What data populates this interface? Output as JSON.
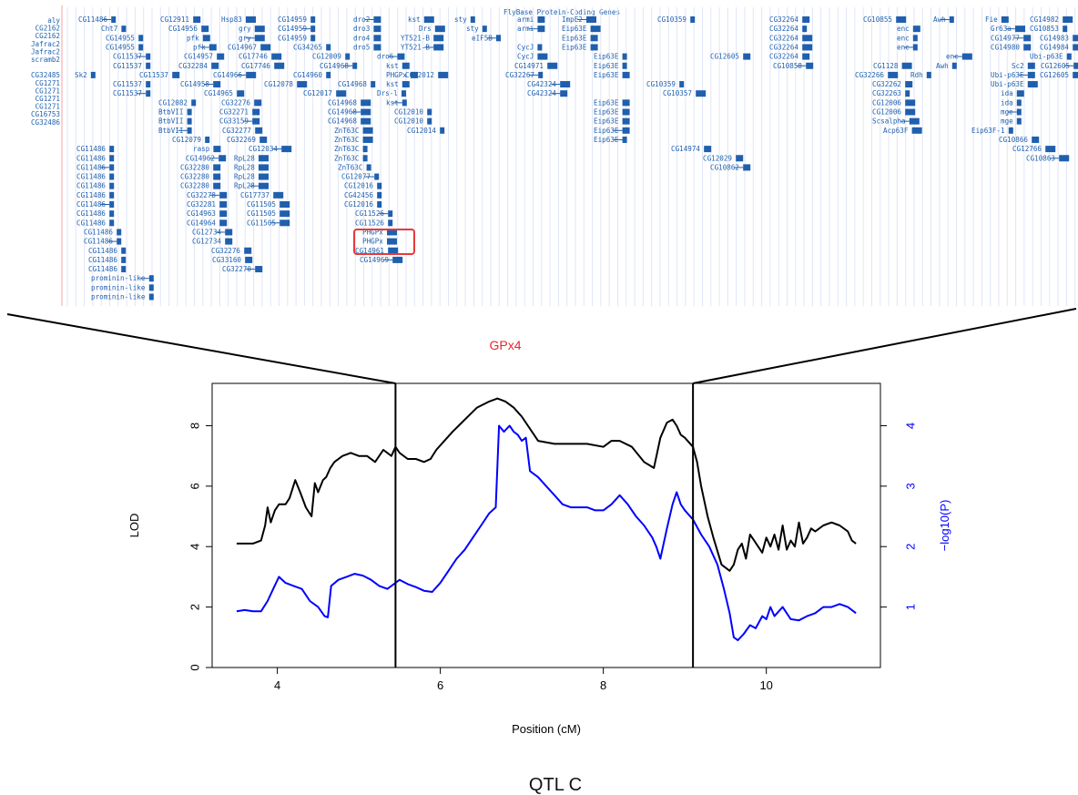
{
  "browser": {
    "track_title": "FlyBase Protein-Coding Genes",
    "left_labels": [
      "aly",
      "CG2162",
      "CG2162",
      "Jafrac2",
      "Jafrac2",
      "scramb2",
      "",
      "CG32485",
      "CG1271",
      "CG1271",
      "CG1271",
      "CG1271",
      "CG16753",
      "CG32486"
    ],
    "gene_rows": [
      [
        [
          "CG11486",
          -1
        ],
        [
          "CG12911",
          -1
        ],
        [
          "Hsp83",
          -1
        ],
        [
          "CG14959",
          -1
        ],
        [
          "dro2",
          -1
        ],
        [
          "kst",
          -1
        ],
        [
          "sty",
          -1
        ],
        [
          "armi",
          -1
        ],
        [
          "ImpE2",
          -1
        ],
        [
          "CG10359",
          -1
        ],
        [
          "CG32264",
          -1
        ],
        [
          "CG10855",
          -1
        ],
        [
          "Awh",
          -1
        ],
        [
          "Fie",
          -1
        ],
        [
          "CG14982",
          -1
        ]
      ],
      [
        [
          "Cht7",
          -1
        ],
        [
          "CG14956",
          -1
        ],
        [
          "gry",
          -1
        ],
        [
          "CG14959",
          -1
        ],
        [
          "dro3",
          -1
        ],
        [
          "Drs",
          -1
        ],
        [
          "sty",
          -1
        ],
        [
          "armi",
          -1
        ],
        [
          "Eip63E",
          -1
        ],
        [
          "CG32264",
          -1
        ],
        [
          "enc",
          -1
        ],
        [
          "Gr63a",
          -1
        ],
        [
          "CG10853",
          -1
        ]
      ],
      [
        [
          "CG14955",
          -1
        ],
        [
          "pfk",
          -1
        ],
        [
          "gry",
          -1
        ],
        [
          "CG14959",
          -1
        ],
        [
          "dro4",
          -1
        ],
        [
          "YT521-B",
          -1
        ],
        [
          "eIF5B",
          -1
        ],
        [
          "Eip63E",
          -1
        ],
        [
          "CG32264",
          -1
        ],
        [
          "enc",
          -1
        ],
        [
          "CG14977",
          -1
        ],
        [
          "CG14983",
          -1
        ]
      ],
      [
        [
          "CG14955",
          -1
        ],
        [
          "pfk",
          -1
        ],
        [
          "CG14967",
          -1
        ],
        [
          "CG34265",
          -1
        ],
        [
          "dro5",
          -1
        ],
        [
          "YT521-B",
          -1
        ],
        [
          "CycJ",
          -1
        ],
        [
          "Eip63E",
          -1
        ],
        [
          "CG32264",
          -1
        ],
        [
          "enc",
          -1
        ],
        [
          "CG14980",
          -1
        ],
        [
          "CG14984",
          -1
        ]
      ],
      [
        [
          "CG11537",
          -1
        ],
        [
          "CG14957",
          -1
        ],
        [
          "CG17746",
          -1
        ],
        [
          "CG12009",
          -1
        ],
        [
          "dro6",
          -1
        ],
        [
          "CycJ",
          -1
        ],
        [
          "Eip63E",
          -1
        ],
        [
          "CG32264",
          -1
        ],
        [
          "enc",
          -1
        ],
        [
          "Ubi-p63E",
          -1
        ],
        [
          "CG12605",
          -1
        ]
      ],
      [
        [
          "CG11537",
          -1
        ],
        [
          "CG32284",
          -1
        ],
        [
          "CG17746",
          -1
        ],
        [
          "CG14968",
          -1
        ],
        [
          "kst",
          -1
        ],
        [
          "CG14971",
          -1
        ],
        [
          "Eip63E",
          -1
        ],
        [
          "CG10858",
          -1
        ],
        [
          "CG1128",
          -1
        ],
        [
          "Awh",
          -1
        ],
        [
          "Sc2",
          -1
        ],
        [
          "CG12605",
          -1
        ]
      ],
      [
        [
          "Sk2",
          -1
        ],
        [
          "CG11537",
          -1
        ],
        [
          "CG14966",
          -1
        ],
        [
          "CG14960",
          -1
        ],
        [
          "PHGPx",
          -1
        ],
        [
          "CG12012",
          -1
        ],
        [
          "CG32267",
          -1
        ],
        [
          "Eip63E",
          -1
        ],
        [
          "CG32266",
          -1
        ],
        [
          "Rdh",
          -1
        ],
        [
          "Ubi-p63E",
          -1
        ],
        [
          "CG12605",
          -1
        ]
      ],
      [
        [
          "CG11537",
          -1
        ],
        [
          "CG14958",
          -1
        ],
        [
          "CG12078",
          -1
        ],
        [
          "CG14968",
          -1
        ],
        [
          "kst",
          -1
        ],
        [
          "CG42324",
          -1
        ],
        [
          "CG10359",
          -1
        ],
        [
          "CG32262",
          -1
        ],
        [
          "Ubi-p63E",
          -1
        ]
      ],
      [
        [
          "CG11537",
          -1
        ],
        [
          "CG14965",
          -1
        ],
        [
          "CG12017",
          -1
        ],
        [
          "Drs-l",
          -1
        ],
        [
          "CG42324",
          -1
        ],
        [
          "CG10357",
          -1
        ],
        [
          "CG32263",
          -1
        ],
        [
          "ida",
          -1
        ]
      ],
      [
        [
          "CG12082",
          -1
        ],
        [
          "CG32276",
          -1
        ],
        [
          "CG14968",
          -1
        ],
        [
          "kst",
          -1
        ],
        [
          "Eip63E",
          -1
        ],
        [
          "CG12006",
          -1
        ],
        [
          "ida",
          -1
        ]
      ],
      [
        [
          "BtbVII",
          -1
        ],
        [
          "CG32271",
          -1
        ],
        [
          "CG14968",
          -1
        ],
        [
          "CG12010",
          -1
        ],
        [
          "Eip63E",
          -1
        ],
        [
          "CG12006",
          -1
        ],
        [
          "mge",
          -1
        ]
      ],
      [
        [
          "BtbVII",
          -1
        ],
        [
          "CG33159",
          -1
        ],
        [
          "CG14968",
          -1
        ],
        [
          "CG12010",
          -1
        ],
        [
          "Eip63E",
          -1
        ],
        [
          "Scsalpha",
          -1
        ],
        [
          "mge",
          -1
        ]
      ],
      [
        [
          "BtbVII",
          -1
        ],
        [
          "CG32277",
          -1
        ],
        [
          "ZnT63C",
          -1
        ],
        [
          "CG12014",
          -1
        ],
        [
          "Eip63E",
          -1
        ],
        [
          "Acp63F",
          -1
        ],
        [
          "Eip63F-1",
          -1
        ]
      ],
      [
        [
          "CG12079",
          -1
        ],
        [
          "CG32269",
          -1
        ],
        [
          "ZnT63C",
          -1
        ],
        [
          "Eip63E",
          -1
        ],
        [
          "CG10866",
          -1
        ]
      ],
      [
        [
          "CG11486",
          -1
        ],
        [
          "rasp",
          -1
        ],
        [
          "CG12034",
          -1
        ],
        [
          "ZnT63C",
          -1
        ],
        [
          "CG14974",
          -1
        ],
        [
          "CG12766",
          -1
        ]
      ],
      [
        [
          "CG11486",
          -1
        ],
        [
          "CG14962",
          -1
        ],
        [
          "RpL28",
          -1
        ],
        [
          "ZnT63C",
          -1
        ],
        [
          "CG12029",
          -1
        ],
        [
          "CG10863",
          -1
        ]
      ],
      [
        [
          "CG11486",
          -1
        ],
        [
          "CG32280",
          -1
        ],
        [
          "RpL28",
          -1
        ],
        [
          "ZnT63C",
          -1
        ],
        [
          "CG10862",
          -1
        ]
      ],
      [
        [
          "CG11486",
          -1
        ],
        [
          "CG32280",
          -1
        ],
        [
          "RpL28",
          -1
        ],
        [
          "CG12077",
          -1
        ]
      ],
      [
        [
          "CG11486",
          -1
        ],
        [
          "CG32280",
          -1
        ],
        [
          "RpL28",
          -1
        ],
        [
          "CG12016",
          -1
        ]
      ],
      [
        [
          "CG11486",
          -1
        ],
        [
          "CG32278",
          -1
        ],
        [
          "CG17737",
          -1
        ],
        [
          "CG42456",
          -1
        ]
      ],
      [
        [
          "CG11486",
          -1
        ],
        [
          "CG32281",
          -1
        ],
        [
          "CG11505",
          -1
        ],
        [
          "CG12016",
          -1
        ]
      ],
      [
        [
          "CG11486",
          -1
        ],
        [
          "CG14963",
          -1
        ],
        [
          "CG11505",
          -1
        ],
        [
          "CG11526",
          -1
        ]
      ],
      [
        [
          "CG11486",
          -1
        ],
        [
          "CG14964",
          -1
        ],
        [
          "CG11505",
          -1
        ],
        [
          "CG11526",
          -1
        ]
      ],
      [
        [
          "CG11486",
          -1
        ],
        [
          "CG12734",
          -1
        ],
        [
          "PHGPx",
          -1
        ]
      ],
      [
        [
          "CG11486",
          -1
        ],
        [
          "CG12734",
          -1
        ],
        [
          "PHGPx",
          -1
        ]
      ],
      [
        [
          "CG11486",
          -1
        ],
        [
          "CG32276",
          -1
        ],
        [
          "CG14961",
          -1
        ]
      ],
      [
        [
          "CG11486",
          -1
        ],
        [
          "CG33160",
          -1
        ],
        [
          "CG14969",
          -1
        ]
      ],
      [
        [
          "CG11486",
          -1
        ],
        [
          "CG32270",
          -1
        ]
      ],
      [
        [
          "prominin-like",
          -1
        ]
      ],
      [
        [
          "prominin-like",
          -1
        ]
      ],
      [
        [
          "prominin-like",
          -1
        ]
      ]
    ]
  },
  "highlight_label": "GPx4",
  "caption": "QTL C",
  "chart_data": {
    "type": "line",
    "xlabel": "Position (cM)",
    "ylabel": "LOD",
    "y2label": "−log10(P)",
    "xlim": [
      3.2,
      11.4
    ],
    "ylim": [
      0,
      9.4
    ],
    "y2lim": [
      0,
      4.7
    ],
    "xticks": [
      4,
      6,
      8,
      10
    ],
    "yticks": [
      0,
      2,
      4,
      6,
      8
    ],
    "y2ticks": [
      1,
      2,
      3,
      4
    ],
    "vlines": [
      5.45,
      9.1
    ],
    "series": [
      {
        "axis": "left",
        "color": "#000000",
        "x": [
          3.5,
          3.6,
          3.7,
          3.8,
          3.85,
          3.88,
          3.92,
          3.97,
          4.02,
          4.1,
          4.15,
          4.22,
          4.28,
          4.35,
          4.42,
          4.46,
          4.5,
          4.56,
          4.6,
          4.65,
          4.7,
          4.8,
          4.9,
          5.0,
          5.1,
          5.2,
          5.3,
          5.4,
          5.45,
          5.5,
          5.6,
          5.7,
          5.8,
          5.88,
          5.95,
          6.05,
          6.15,
          6.3,
          6.45,
          6.6,
          6.7,
          6.8,
          6.9,
          7.0,
          7.2,
          7.4,
          7.6,
          7.8,
          8.0,
          8.1,
          8.2,
          8.35,
          8.5,
          8.62,
          8.7,
          8.78,
          8.85,
          8.9,
          8.95,
          9.0,
          9.1,
          9.15,
          9.2,
          9.28,
          9.35,
          9.45,
          9.55,
          9.6,
          9.65,
          9.7,
          9.75,
          9.8,
          9.85,
          9.9,
          9.95,
          10.0,
          10.05,
          10.1,
          10.15,
          10.2,
          10.25,
          10.3,
          10.35,
          10.4,
          10.45,
          10.5,
          10.55,
          10.6,
          10.7,
          10.8,
          10.9,
          11.0,
          11.05,
          11.1
        ],
        "y": [
          4.1,
          4.1,
          4.1,
          4.2,
          4.7,
          5.3,
          4.8,
          5.2,
          5.4,
          5.4,
          5.6,
          6.2,
          5.8,
          5.3,
          5.0,
          6.1,
          5.8,
          6.2,
          6.3,
          6.6,
          6.8,
          7.0,
          7.1,
          7.0,
          7.0,
          6.8,
          7.2,
          7.0,
          7.3,
          7.1,
          6.9,
          6.9,
          6.8,
          6.9,
          7.2,
          7.5,
          7.8,
          8.2,
          8.6,
          8.8,
          8.9,
          8.8,
          8.6,
          8.3,
          7.5,
          7.4,
          7.4,
          7.4,
          7.3,
          7.5,
          7.5,
          7.3,
          6.8,
          6.6,
          7.6,
          8.1,
          8.2,
          8.0,
          7.7,
          7.6,
          7.3,
          6.8,
          6.0,
          5.0,
          4.3,
          3.4,
          3.2,
          3.4,
          3.9,
          4.1,
          3.6,
          4.4,
          4.2,
          4.0,
          3.8,
          4.3,
          4.0,
          4.4,
          3.9,
          4.7,
          3.9,
          4.2,
          4.0,
          4.8,
          4.1,
          4.3,
          4.6,
          4.5,
          4.7,
          4.8,
          4.7,
          4.5,
          4.2,
          4.1
        ]
      },
      {
        "axis": "right",
        "color": "#0000ff",
        "x": [
          3.5,
          3.6,
          3.7,
          3.8,
          3.88,
          3.95,
          4.02,
          4.1,
          4.2,
          4.3,
          4.4,
          4.5,
          4.58,
          4.62,
          4.66,
          4.75,
          4.85,
          4.95,
          5.05,
          5.15,
          5.25,
          5.35,
          5.45,
          5.5,
          5.6,
          5.7,
          5.8,
          5.9,
          6.0,
          6.1,
          6.2,
          6.3,
          6.4,
          6.5,
          6.6,
          6.68,
          6.72,
          6.78,
          6.85,
          6.9,
          6.95,
          7.0,
          7.05,
          7.1,
          7.2,
          7.3,
          7.4,
          7.5,
          7.6,
          7.7,
          7.8,
          7.9,
          8.0,
          8.1,
          8.2,
          8.3,
          8.4,
          8.5,
          8.6,
          8.65,
          8.7,
          8.78,
          8.85,
          8.9,
          8.95,
          9.0,
          9.1,
          9.2,
          9.3,
          9.4,
          9.48,
          9.55,
          9.6,
          9.65,
          9.72,
          9.8,
          9.87,
          9.95,
          10.0,
          10.05,
          10.1,
          10.2,
          10.3,
          10.4,
          10.5,
          10.6,
          10.65,
          10.7,
          10.8,
          10.9,
          11.0,
          11.05,
          11.1
        ],
        "y": [
          0.93,
          0.95,
          0.93,
          0.93,
          1.1,
          1.3,
          1.5,
          1.4,
          1.35,
          1.3,
          1.1,
          1.0,
          0.85,
          0.83,
          1.35,
          1.45,
          1.5,
          1.55,
          1.52,
          1.45,
          1.35,
          1.3,
          1.4,
          1.45,
          1.38,
          1.33,
          1.27,
          1.25,
          1.4,
          1.6,
          1.8,
          1.95,
          2.15,
          2.35,
          2.55,
          2.65,
          4.0,
          3.9,
          4.0,
          3.9,
          3.85,
          3.75,
          3.8,
          3.25,
          3.15,
          3.0,
          2.85,
          2.7,
          2.65,
          2.65,
          2.65,
          2.6,
          2.6,
          2.7,
          2.85,
          2.7,
          2.5,
          2.35,
          2.15,
          2.0,
          1.8,
          2.3,
          2.7,
          2.9,
          2.7,
          2.6,
          2.45,
          2.2,
          2.0,
          1.7,
          1.3,
          0.9,
          0.5,
          0.45,
          0.55,
          0.7,
          0.65,
          0.85,
          0.8,
          1.0,
          0.85,
          1.0,
          0.8,
          0.78,
          0.85,
          0.9,
          0.95,
          1.0,
          1.0,
          1.05,
          1.0,
          0.95,
          0.9
        ]
      }
    ]
  }
}
